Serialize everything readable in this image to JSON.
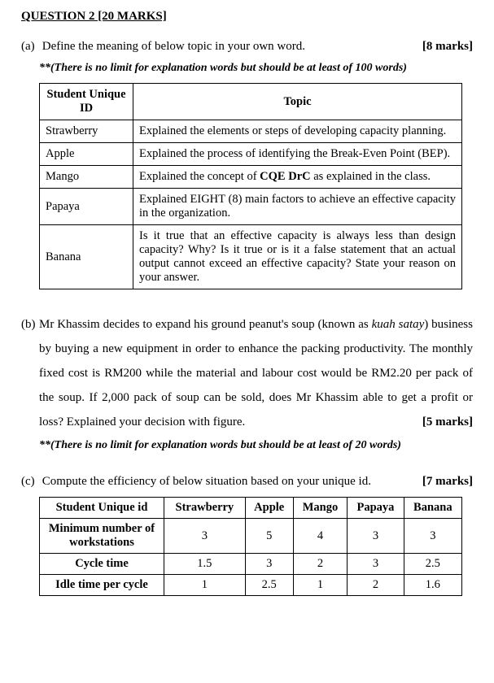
{
  "title": "QUESTION 2 [20 MARKS]",
  "partA": {
    "label": "(a)",
    "text": "Define the meaning of below topic in your own word.",
    "marks": "[8 marks]",
    "note": "**(There is no limit for explanation words but should be at least of 100 words)",
    "headers": {
      "col1": "Student Unique ID",
      "col2": "Topic"
    },
    "rows": [
      {
        "id": "Strawberry",
        "topic": "Explained the elements or steps of developing capacity planning."
      },
      {
        "id": "Apple",
        "topic": "Explained the process of identifying the Break-Even Point (BEP)."
      },
      {
        "id": "Mango",
        "topic_html": "Explained the concept of <b>CQE DrC</b> as explained in the class."
      },
      {
        "id": "Papaya",
        "topic": "Explained EIGHT (8) main factors to achieve an effective capacity in the organization."
      },
      {
        "id": "Banana",
        "topic": "Is it true that an effective capacity is always less than design capacity? Why? Is it true or is it a false statement that an actual output cannot exceed an effective capacity? State your reason on your answer."
      }
    ]
  },
  "partB": {
    "label": "(b)",
    "body_html": "Mr Khassim decides to expand his ground peanut's soup (known as <i>kuah satay</i>) business by buying a new equipment in order to enhance the packing productivity. The monthly fixed cost is RM200 while the material and labour cost would be RM2.20 per pack of the soup. If 2,000 pack of soup can be sold, does Mr Khassim able to get a profit or loss? Explained your decision with figure.",
    "marks": "[5 marks]",
    "note": "**(There is no limit for explanation words but should be at least of 20 words)"
  },
  "partC": {
    "label": "(c)",
    "text": "Compute the efficiency of below situation based on your unique id.",
    "marks": "[7 marks]",
    "headers": [
      "Student Unique id",
      "Strawberry",
      "Apple",
      "Mango",
      "Papaya",
      "Banana"
    ],
    "rows": [
      {
        "label": "Minimum number of workstations",
        "vals": [
          "3",
          "5",
          "4",
          "3",
          "3"
        ]
      },
      {
        "label": "Cycle time",
        "vals": [
          "1.5",
          "3",
          "2",
          "3",
          "2.5"
        ]
      },
      {
        "label": "Idle time per cycle",
        "vals": [
          "1",
          "2.5",
          "1",
          "2",
          "1.6"
        ]
      }
    ]
  }
}
